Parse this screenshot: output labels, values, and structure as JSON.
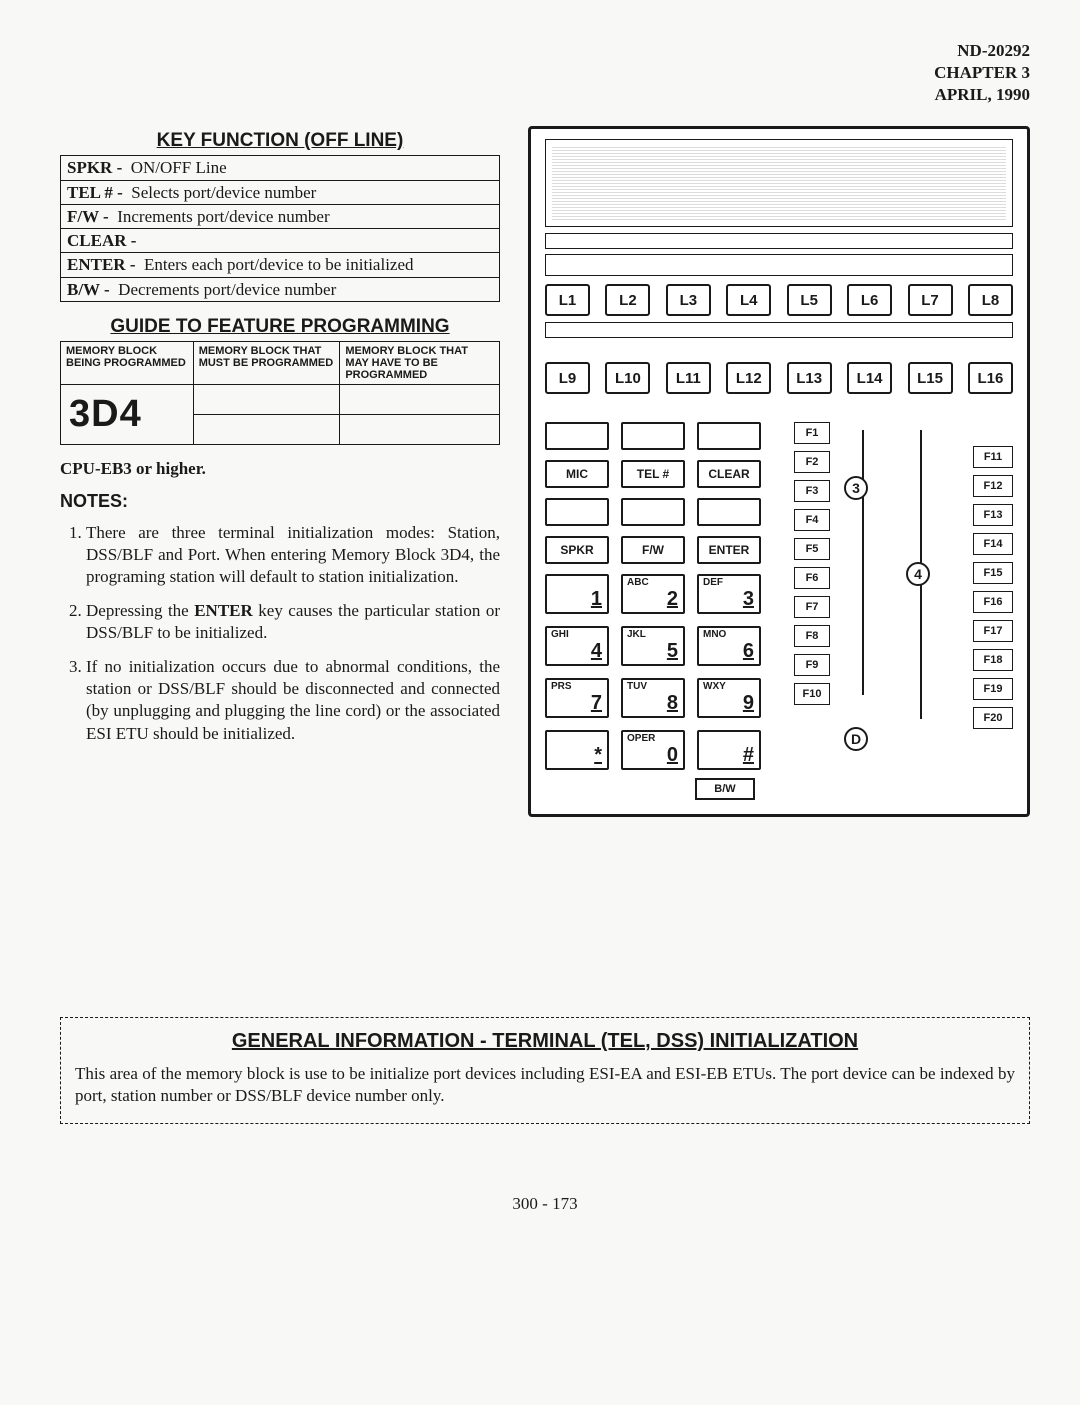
{
  "header": {
    "doc": "ND-20292",
    "chapter": "CHAPTER 3",
    "date": "APRIL, 1990"
  },
  "keyfunc": {
    "title": "KEY FUNCTION (OFF LINE)",
    "rows": [
      {
        "key": "SPKR -",
        "desc": "ON/OFF Line"
      },
      {
        "key": "TEL # -",
        "desc": "Selects port/device number"
      },
      {
        "key": "F/W  -",
        "desc": "Increments port/device number"
      },
      {
        "key": "CLEAR -",
        "desc": ""
      },
      {
        "key": "ENTER -",
        "desc": "Enters each port/device to be initialized"
      },
      {
        "key": "B/W  -",
        "desc": "Decrements port/device number"
      }
    ]
  },
  "guide": {
    "title": "GUIDE TO FEATURE PROGRAMMING",
    "headers": [
      "MEMORY BLOCK BEING PROGRAMMED",
      "MEMORY BLOCK THAT MUST BE PROGRAMMED",
      "MEMORY BLOCK THAT MAY HAVE TO BE PROGRAMMED"
    ],
    "code": "3D4"
  },
  "cpu_note": "CPU-EB3 or higher.",
  "notes_h": "NOTES:",
  "notes": [
    "There are three terminal initialization modes: Station, DSS/BLF and Port. When entering Memory Block 3D4, the programing station will default to station initialization.",
    "Depressing the <b>ENTER</b> key causes the particular station or DSS/BLF to be initialized.",
    "If no initialization occurs due to abnormal conditions, the station or DSS/BLF should be disconnected and connected (by unplugging and plugging the line cord) or the associated ESI ETU should be initialized."
  ],
  "phone": {
    "line_keys_1": [
      "L1",
      "L2",
      "L3",
      "L4",
      "L5",
      "L6",
      "L7",
      "L8"
    ],
    "line_keys_2": [
      "L9",
      "L10",
      "L11",
      "L12",
      "L13",
      "L14",
      "L15",
      "L16"
    ],
    "fn_row1": [
      "MIC",
      "TEL #",
      "CLEAR"
    ],
    "fn_row2": [
      "SPKR",
      "F/W",
      "ENTER"
    ],
    "dial": [
      {
        "d": "1",
        "l": ""
      },
      {
        "d": "2",
        "l": "ABC"
      },
      {
        "d": "3",
        "l": "DEF"
      },
      {
        "d": "4",
        "l": "GHI"
      },
      {
        "d": "5",
        "l": "JKL"
      },
      {
        "d": "6",
        "l": "MNO"
      },
      {
        "d": "7",
        "l": "PRS"
      },
      {
        "d": "8",
        "l": "TUV"
      },
      {
        "d": "9",
        "l": "WXY"
      },
      {
        "d": "*",
        "l": ""
      },
      {
        "d": "0",
        "l": "OPER"
      },
      {
        "d": "#",
        "l": ""
      }
    ],
    "bw": "B/W",
    "fcol_mid": [
      "F1",
      "F2",
      "F3",
      "F4",
      "F5",
      "F6",
      "F7",
      "F8",
      "F9",
      "F10"
    ],
    "fcol_right": [
      "F11",
      "F12",
      "F13",
      "F14",
      "F15",
      "F16",
      "F17",
      "F18",
      "F19",
      "F20"
    ],
    "circles": {
      "n3": "3",
      "n4": "4",
      "nd": "D"
    }
  },
  "general": {
    "title": "GENERAL INFORMATION  -  TERMINAL (TEL, DSS) INITIALIZATION",
    "body": "This area of the memory block is use to be initialize port devices including ESI-EA and ESI-EB ETUs. The port device can be indexed by port, station number or DSS/BLF device number only."
  },
  "page": "300 - 173"
}
